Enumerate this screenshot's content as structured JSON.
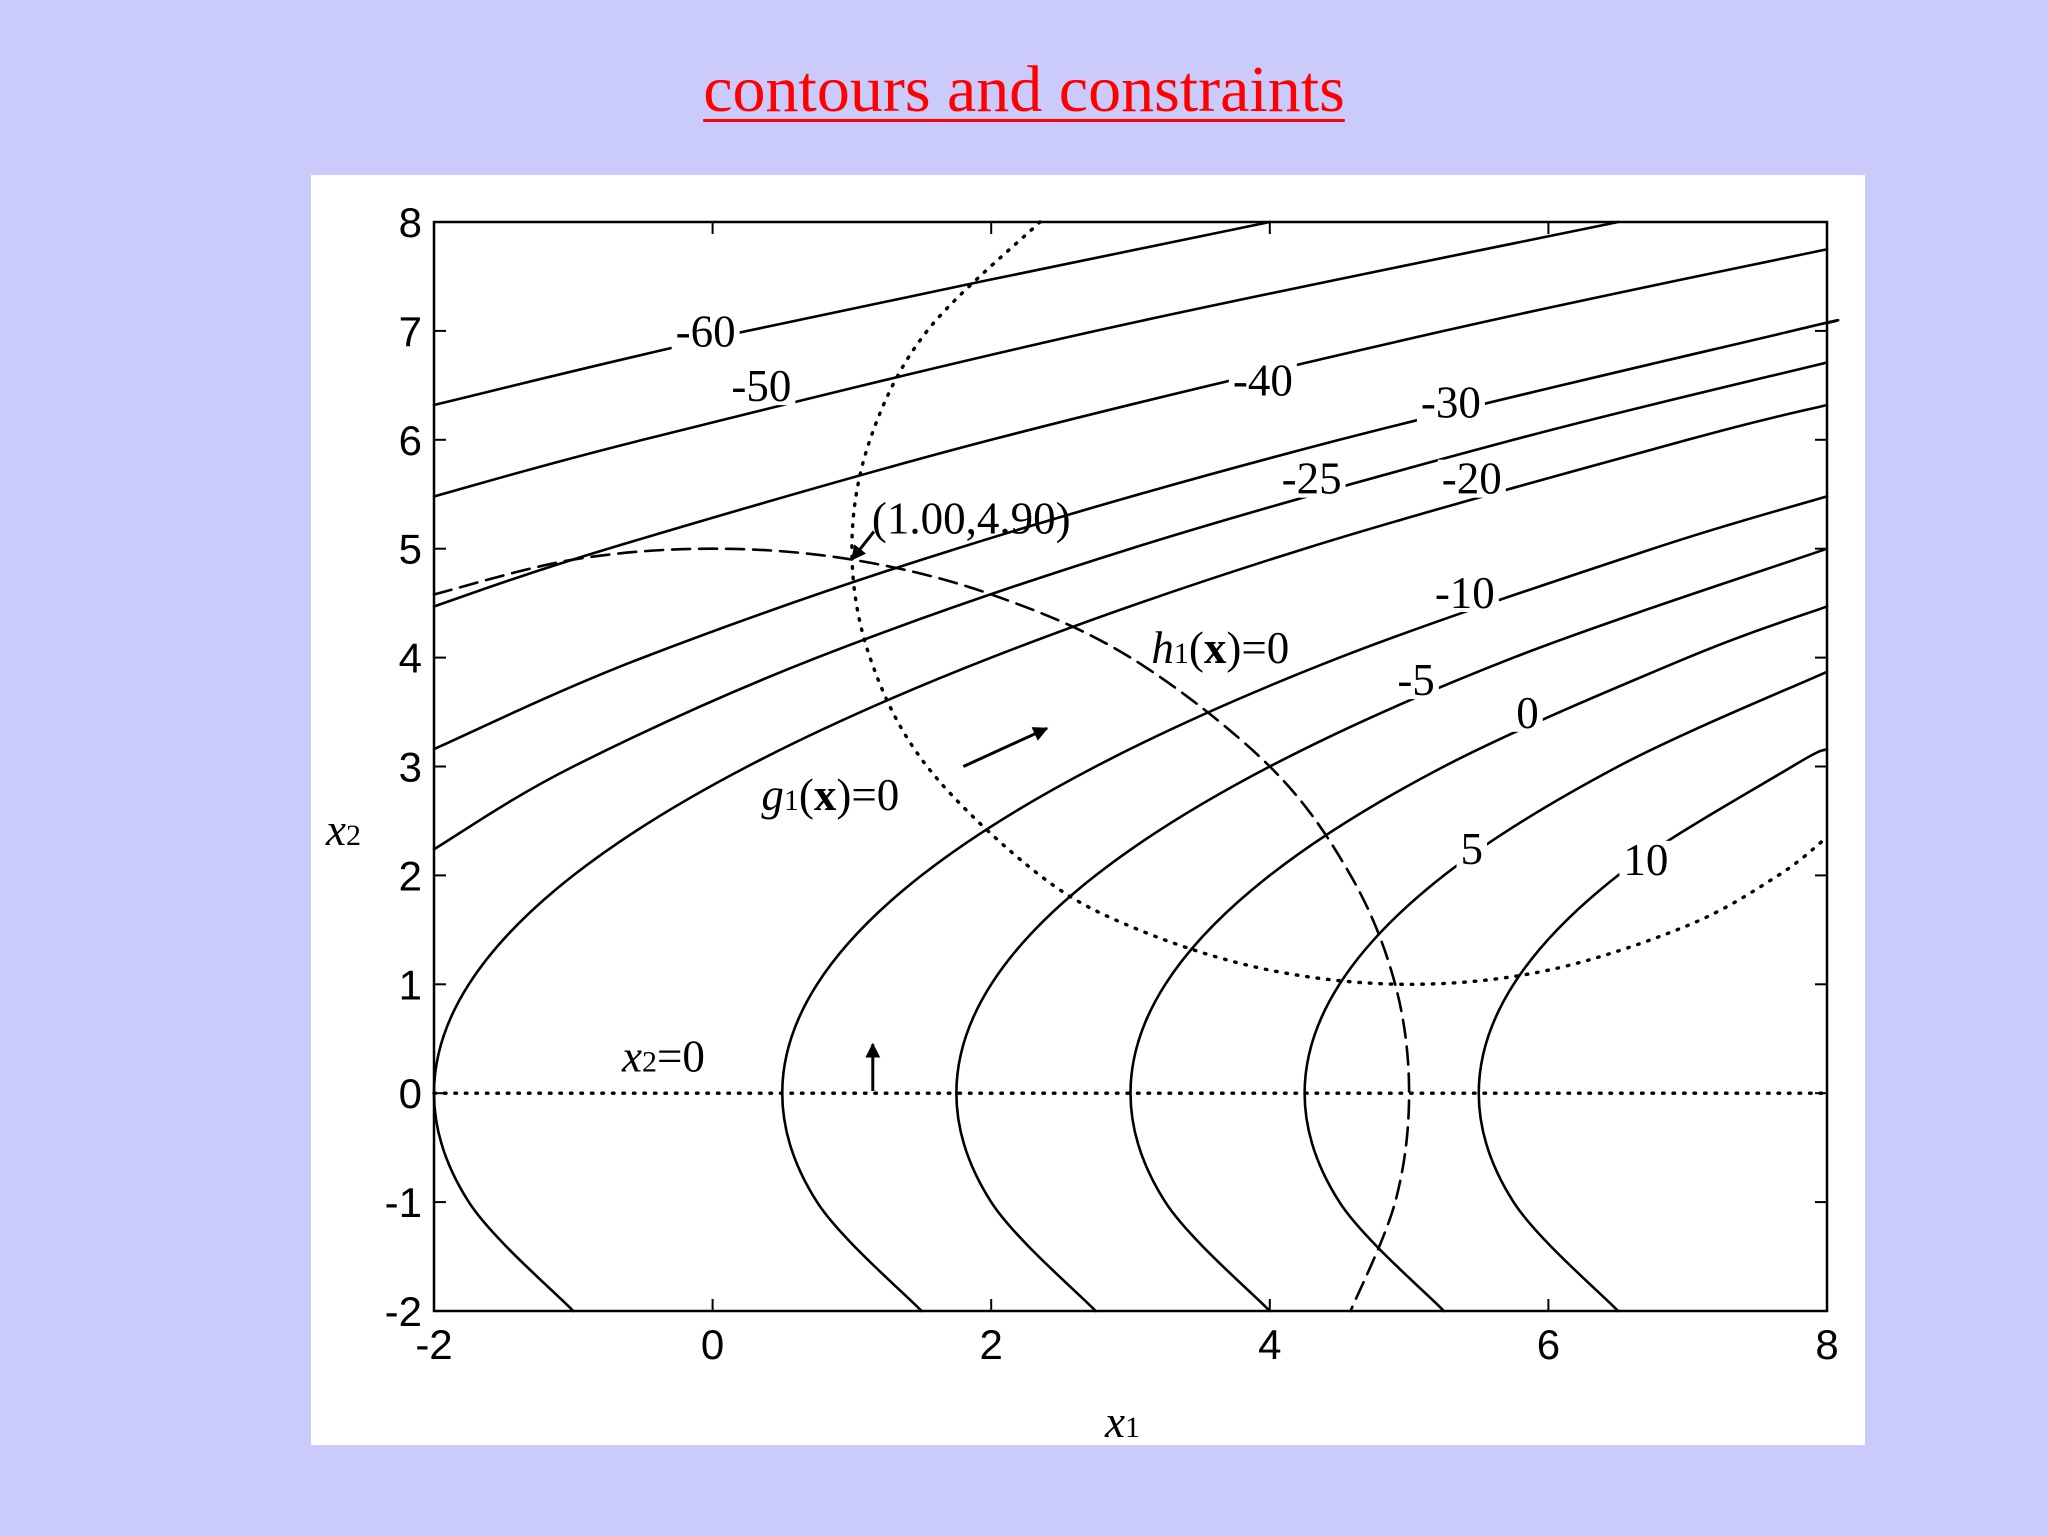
{
  "chart_data": {
    "type": "contour",
    "title": "contours and constraints",
    "xlabel": [
      "x",
      "1"
    ],
    "ylabel": [
      "x",
      "2"
    ],
    "xlim": [
      -2,
      8
    ],
    "ylim": [
      -2,
      8
    ],
    "xticks": [
      -2,
      0,
      2,
      4,
      6,
      8
    ],
    "yticks": [
      -2,
      -1,
      0,
      1,
      2,
      3,
      4,
      5,
      6,
      7,
      8
    ],
    "color": "#000000",
    "contours": [
      {
        "name": "-60",
        "x": [
          -2,
          0.25,
          4
        ],
        "y": [
          6.32,
          7,
          8
        ]
      },
      {
        "name": "-50",
        "x": [
          -2,
          -0.5,
          2.75,
          6.5
        ],
        "y": [
          5.48,
          6,
          7,
          8
        ]
      },
      {
        "name": "-40",
        "x": [
          -2,
          -0.75,
          2,
          5.25,
          8
        ],
        "y": [
          4.47,
          5,
          6,
          7,
          7.75
        ]
      },
      {
        "name": "-30",
        "x": [
          -2,
          -0.5,
          1.75,
          4.5,
          7.75,
          8
        ],
        "y": [
          3.16,
          4,
          5,
          6,
          7,
          7.07
        ]
      },
      {
        "name": "-25",
        "x": [
          -2,
          -1,
          0.75,
          3,
          5.75,
          8
        ],
        "y": [
          2.24,
          3,
          4,
          5,
          6,
          6.71
        ]
      },
      {
        "name": "-20",
        "x": [
          -1,
          -1.75,
          -2,
          -1.75,
          -1,
          0.25,
          2,
          4.25,
          7,
          8
        ],
        "y": [
          -2,
          -1,
          0,
          1,
          2,
          3,
          4,
          5,
          6,
          6.32
        ]
      },
      {
        "name": "-10",
        "x": [
          1.5,
          0.75,
          0.5,
          0.75,
          1.5,
          2.75,
          4.5,
          6.75,
          8
        ],
        "y": [
          -2,
          -1,
          0,
          1,
          2,
          3,
          4,
          5,
          5.48
        ]
      },
      {
        "name": "-5",
        "x": [
          2.75,
          2,
          1.75,
          2,
          2.75,
          4,
          5.75,
          8
        ],
        "y": [
          -2,
          -1,
          0,
          1,
          2,
          3,
          4,
          5
        ]
      },
      {
        "name": "0",
        "x": [
          4,
          3.25,
          3,
          3.25,
          4,
          5.25,
          7,
          8
        ],
        "y": [
          -2,
          -1,
          0,
          1,
          2,
          3,
          4,
          4.47
        ]
      },
      {
        "name": "5",
        "x": [
          5.25,
          4.5,
          4.25,
          4.5,
          5.25,
          6.5,
          8
        ],
        "y": [
          -2,
          -1,
          0,
          1,
          2,
          3,
          3.87
        ]
      },
      {
        "name": "10",
        "x": [
          6.5,
          5.75,
          5.5,
          5.75,
          6.5,
          7.75,
          8
        ],
        "y": [
          -2,
          -1,
          0,
          1,
          2,
          3,
          3.16
        ]
      }
    ],
    "constraints": [
      {
        "label": [
          "g",
          "1",
          "(",
          "x",
          ")=0"
        ],
        "style": "dotted",
        "x": [
          2.35,
          1.54,
          1.13,
          1,
          1.13,
          1.54,
          2.35,
          3.06,
          4,
          5,
          6,
          7,
          7.65,
          8
        ],
        "y": [
          8,
          7,
          6,
          5,
          4,
          3,
          2,
          1.5,
          1.13,
          1,
          1.13,
          1.54,
          2,
          2.35
        ]
      },
      {
        "label": [
          "h",
          "1",
          "(",
          "x",
          ")=0"
        ],
        "style": "dashed",
        "x": [
          -2,
          -1,
          0,
          1,
          2,
          3,
          4,
          4.58,
          4.9,
          5,
          4.9,
          4.58
        ],
        "y": [
          4.58,
          4.9,
          5,
          4.9,
          4.58,
          4,
          3,
          2,
          1,
          0,
          -1,
          -2
        ]
      },
      {
        "label": [
          "x",
          "2",
          "=0"
        ],
        "style": "dotted",
        "x": [
          -2,
          8
        ],
        "y": [
          0,
          0
        ]
      }
    ],
    "optimum": {
      "label": "(1.00,4.90)",
      "x": 1,
      "y": 4.9
    }
  }
}
